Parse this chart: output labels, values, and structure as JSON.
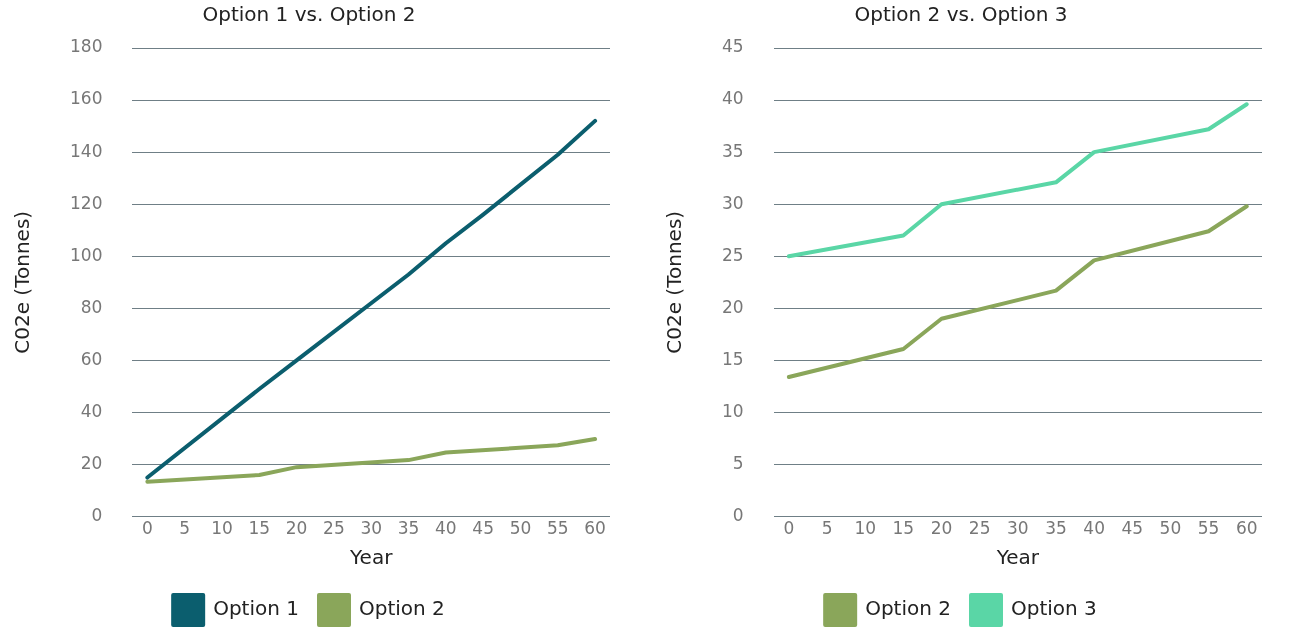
{
  "chart_data": [
    {
      "type": "line",
      "title": "Option 1 vs. Option 2",
      "xlabel": "Year",
      "ylabel": "C02e (Tonnes)",
      "xlim": [
        -2,
        62
      ],
      "xticks": [
        0,
        5,
        10,
        15,
        20,
        25,
        30,
        35,
        40,
        45,
        50,
        55,
        60
      ],
      "ylim": [
        0,
        180
      ],
      "yticks": [
        0,
        20,
        40,
        60,
        80,
        100,
        120,
        140,
        160,
        180
      ],
      "grid": "y",
      "legend": "bottom",
      "series": [
        {
          "name": "Option 1",
          "color": "#0b5e6e",
          "x": [
            0,
            15,
            20,
            35,
            40,
            45,
            55,
            60
          ],
          "values": [
            15,
            49,
            60,
            93,
            105,
            116,
            139,
            152
          ]
        },
        {
          "name": "Option 2",
          "color": "#8aa65a",
          "x": [
            0,
            15,
            20,
            35,
            40,
            55,
            60
          ],
          "values": [
            13.4,
            16,
            19,
            21.7,
            24.6,
            27.4,
            29.8
          ]
        }
      ]
    },
    {
      "type": "line",
      "title": "Option 2 vs. Option 3",
      "xlabel": "Year",
      "ylabel": "C02e (Tonnes)",
      "xlim": [
        -2,
        62
      ],
      "xticks": [
        0,
        5,
        10,
        15,
        20,
        25,
        30,
        35,
        40,
        45,
        50,
        55,
        60
      ],
      "ylim": [
        0,
        45
      ],
      "yticks": [
        0,
        5,
        10,
        15,
        20,
        25,
        30,
        35,
        40,
        45
      ],
      "grid": "y",
      "legend": "bottom",
      "series": [
        {
          "name": "Option 2",
          "color": "#8aa65a",
          "x": [
            0,
            15,
            20,
            35,
            40,
            55,
            60
          ],
          "values": [
            13.4,
            16.1,
            19,
            21.7,
            24.6,
            27.4,
            29.8
          ]
        },
        {
          "name": "Option 3",
          "color": "#5ad6a6",
          "x": [
            0,
            15,
            20,
            35,
            40,
            55,
            60
          ],
          "values": [
            25,
            27,
            30,
            32.1,
            35,
            37.2,
            39.6
          ]
        }
      ]
    }
  ]
}
